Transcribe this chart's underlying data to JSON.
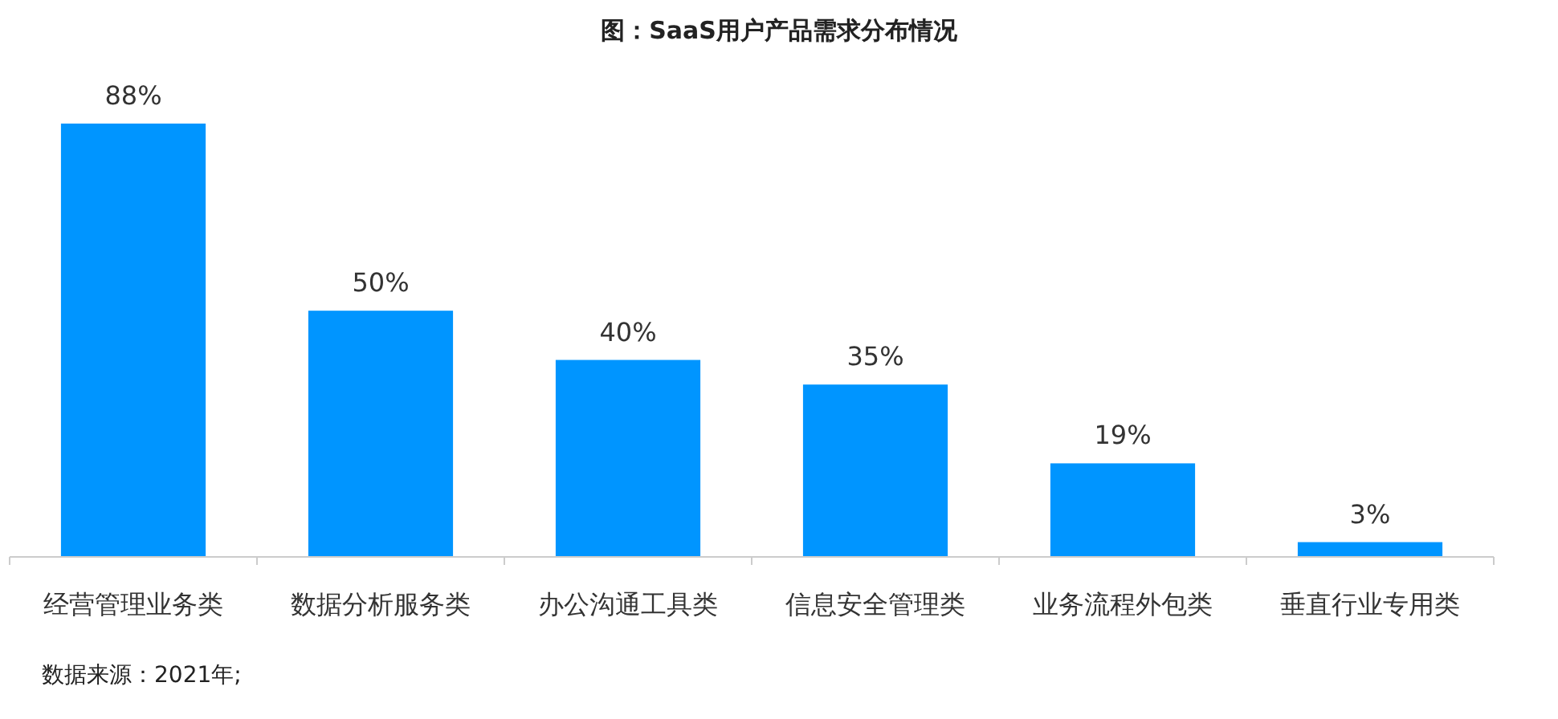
{
  "chart_data": {
    "type": "bar",
    "title": "图：SaaS用户产品需求分布情况",
    "categories": [
      "经营管理业务类",
      "数据分析服务类",
      "办公沟通工具类",
      "信息安全管理类",
      "业务流程外包类",
      "垂直行业专用类"
    ],
    "values": [
      88,
      50,
      40,
      35,
      19,
      3
    ],
    "value_labels": [
      "88%",
      "50%",
      "40%",
      "35%",
      "19%",
      "3%"
    ],
    "color": "#0095ff",
    "annotations": [
      "数据来源：2021年;"
    ]
  }
}
